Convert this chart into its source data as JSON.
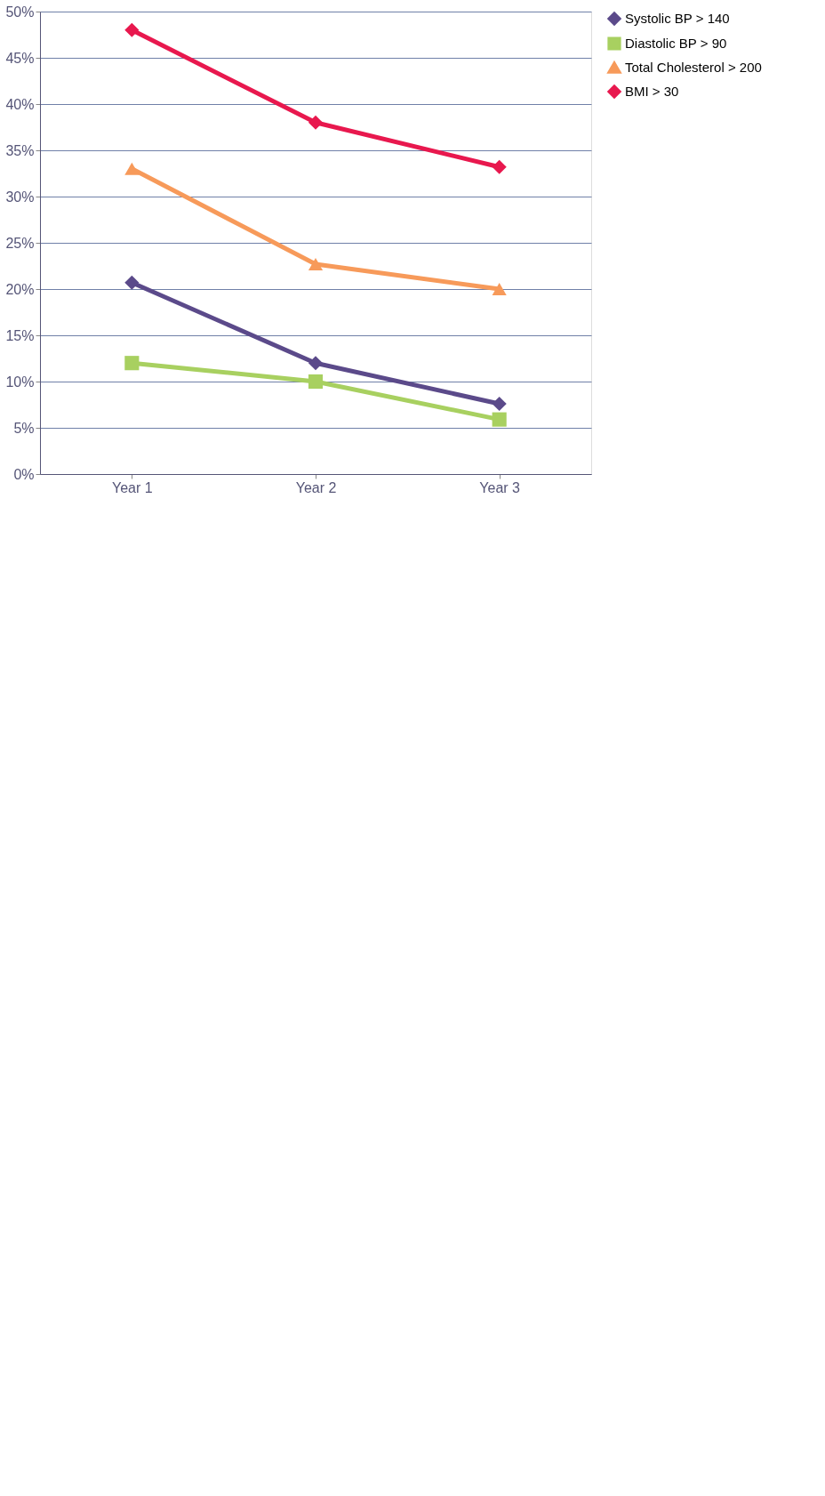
{
  "chart_data": {
    "type": "line",
    "categories": [
      "Year 1",
      "Year 2",
      "Year 3"
    ],
    "series": [
      {
        "name": "Systolic BP > 140",
        "color": "#5b4a8a",
        "marker": "diamond",
        "values": [
          20.7,
          12,
          7.6
        ]
      },
      {
        "name": "Diastolic BP > 90",
        "color": "#a8d060",
        "marker": "square",
        "values": [
          12,
          10,
          5.9
        ]
      },
      {
        "name": "Total Cholesterol > 200",
        "color": "#f79a5a",
        "marker": "triangle",
        "values": [
          33,
          22.7,
          20
        ]
      },
      {
        "name": "BMI > 30",
        "color": "#e8184e",
        "marker": "diamond",
        "values": [
          48,
          38,
          33.2
        ]
      }
    ],
    "ylim": [
      0,
      50
    ],
    "yticks": [
      {
        "value": 0,
        "label": "0%"
      },
      {
        "value": 5,
        "label": "5%"
      },
      {
        "value": 10,
        "label": "10%"
      },
      {
        "value": 15,
        "label": "15%"
      },
      {
        "value": 20,
        "label": "20%"
      },
      {
        "value": 25,
        "label": "25%"
      },
      {
        "value": 30,
        "label": "30%"
      },
      {
        "value": 35,
        "label": "35%"
      },
      {
        "value": 40,
        "label": "40%"
      },
      {
        "value": 45,
        "label": "45%"
      },
      {
        "value": 50,
        "label": "50%"
      }
    ],
    "grid": "y",
    "legend": "right",
    "line_style": "solid"
  }
}
